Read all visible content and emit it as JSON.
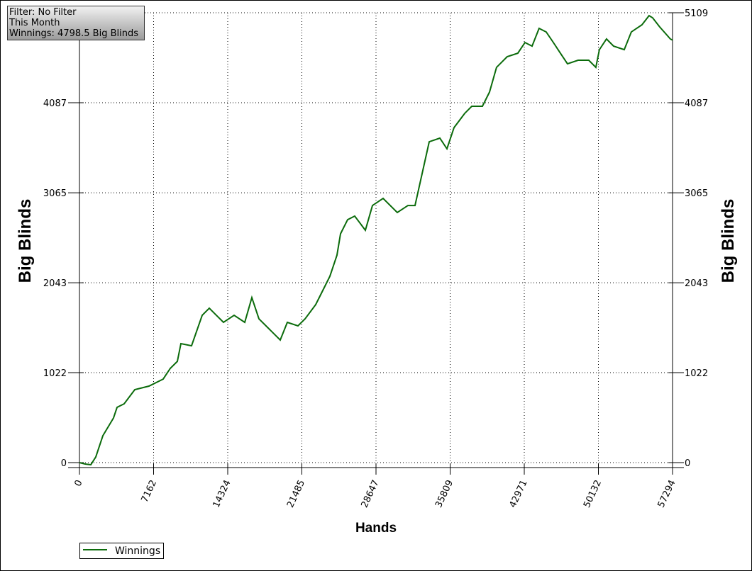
{
  "chart_data": {
    "type": "line",
    "annotations": [
      "Filter: No Filter",
      "This Month",
      "Winnings: 4798.5 Big Blinds"
    ],
    "x_label": "Hands",
    "y_label": "Big Blinds",
    "xlim": [
      0,
      57294
    ],
    "ylim": [
      -56,
      5109
    ],
    "xticks": [
      0,
      7162,
      14324,
      21485,
      28647,
      35809,
      42971,
      50132,
      57294
    ],
    "yticks": [
      0,
      1022,
      2043,
      3065,
      4087,
      5109
    ],
    "grid": true,
    "legend": "bottom-left",
    "series": [
      {
        "name": "Winnings",
        "color": "#0b6b0b",
        "x": [
          0,
          548,
          1096,
          1576,
          2261,
          3289,
          3632,
          4317,
          5345,
          6716,
          8087,
          8772,
          9457,
          9800,
          10828,
          11856,
          12541,
          13226,
          13912,
          14939,
          15967,
          16653,
          17338,
          18366,
          19394,
          20079,
          21107,
          21792,
          22820,
          23505,
          24190,
          24876,
          25218,
          25904,
          26589,
          27617,
          28302,
          29330,
          30701,
          31729,
          32414,
          33099,
          33784,
          34812,
          35497,
          36183,
          37211,
          37896,
          38924,
          39609,
          40294,
          41322,
          42350,
          43036,
          43721,
          44406,
          45091,
          45777,
          46462,
          47147,
          48175,
          49203,
          49888,
          50231,
          50916,
          51601,
          52629,
          53314,
          54342,
          55028,
          55371,
          56056,
          57084,
          57294
        ],
        "values": [
          0,
          -16,
          -24,
          64,
          306,
          507,
          628,
          668,
          829,
          869,
          949,
          1070,
          1150,
          1352,
          1327,
          1673,
          1754,
          1673,
          1593,
          1673,
          1593,
          1874,
          1633,
          1513,
          1392,
          1593,
          1553,
          1633,
          1794,
          1955,
          2116,
          2357,
          2599,
          2759,
          2800,
          2639,
          2920,
          3001,
          2840,
          2920,
          2920,
          3282,
          3644,
          3685,
          3564,
          3805,
          3966,
          4047,
          4047,
          4208,
          4489,
          4610,
          4650,
          4771,
          4730,
          4932,
          4891,
          4771,
          4650,
          4529,
          4570,
          4570,
          4489,
          4690,
          4811,
          4730,
          4690,
          4891,
          4972,
          5076,
          5052,
          4948,
          4811,
          4798.5
        ]
      }
    ]
  }
}
